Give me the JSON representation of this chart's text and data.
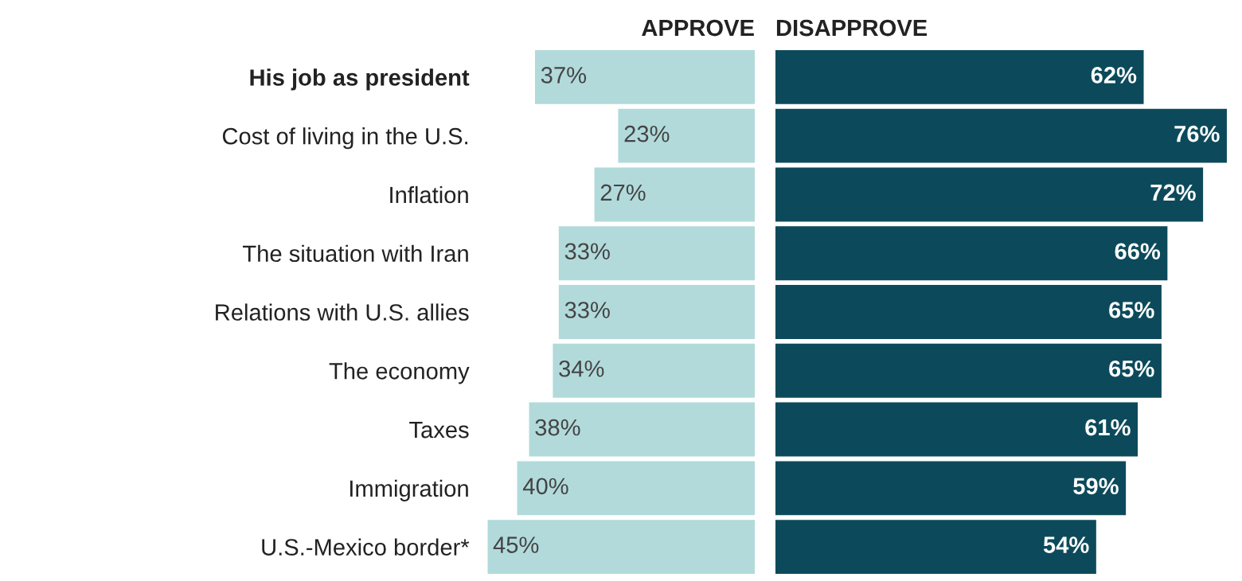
{
  "chart_data": [
    {
      "type": "bar",
      "orientation": "horizontal",
      "title": "APPROVE",
      "tick_labels": "y",
      "categories": [
        "His job as president",
        "Cost of living in the U.S.",
        "Inflation",
        "The situation with Iran",
        "Relations with U.S. allies",
        "The economy",
        "Taxes",
        "Immigration",
        "U.S.-Mexico border*"
      ],
      "series": [
        {
          "color": "#b2dadb",
          "values": [
            37,
            23,
            27,
            33,
            33,
            34,
            38,
            40,
            45
          ],
          "value_labels": [
            "37%",
            "23%",
            "27%",
            "33%",
            "33%",
            "34%",
            "38%",
            "40%",
            "45%"
          ]
        }
      ]
    },
    {
      "type": "bar",
      "orientation": "horizontal",
      "title": "DISAPPROVE",
      "tick_labels": false,
      "categories": [
        null,
        null,
        null,
        null,
        null,
        null,
        null,
        null,
        null
      ],
      "series": [
        {
          "color": "#0c4a5b",
          "values": [
            62,
            76,
            72,
            66,
            65,
            65,
            61,
            59,
            54
          ],
          "value_labels": [
            "62%",
            "76%",
            "72%",
            "66%",
            "65%",
            "65%",
            "61%",
            "59%",
            "54%"
          ]
        }
      ]
    }
  ]
}
